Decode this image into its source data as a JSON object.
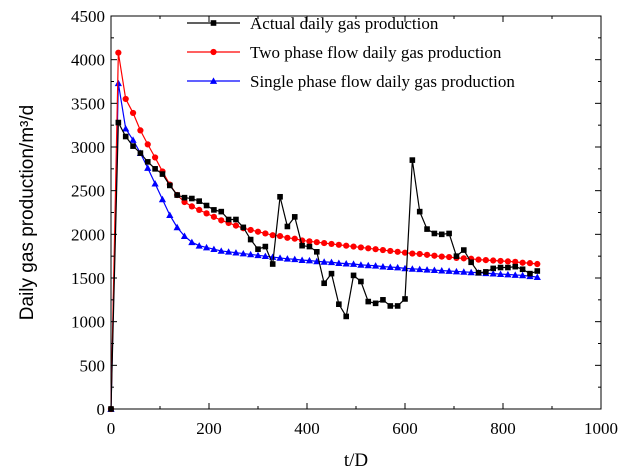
{
  "chart_data": {
    "type": "line",
    "xlabel": "t/D",
    "ylabel": "Daily gas production/m³/d",
    "xlim": [
      0,
      1000
    ],
    "ylim": [
      0,
      4500
    ],
    "xticks": [
      0,
      200,
      400,
      600,
      800,
      1000
    ],
    "yticks": [
      0,
      500,
      1000,
      1500,
      2000,
      2500,
      3000,
      3500,
      4000,
      4500
    ],
    "grid": false,
    "legend_position": "top-right",
    "series": [
      {
        "name": "Actual daily gas production",
        "color": "#000000",
        "marker": "square",
        "x": [
          0,
          15,
          30,
          45,
          60,
          75,
          90,
          105,
          120,
          135,
          150,
          165,
          180,
          195,
          210,
          225,
          240,
          255,
          270,
          285,
          300,
          315,
          330,
          345,
          360,
          375,
          390,
          405,
          420,
          435,
          450,
          465,
          480,
          495,
          510,
          525,
          540,
          555,
          570,
          585,
          600,
          615,
          630,
          645,
          660,
          675,
          690,
          705,
          720,
          735,
          750,
          765,
          780,
          795,
          810,
          825,
          840,
          855,
          870
        ],
        "y": [
          0,
          3280,
          3120,
          3010,
          2930,
          2830,
          2750,
          2690,
          2560,
          2450,
          2420,
          2410,
          2380,
          2330,
          2280,
          2260,
          2170,
          2170,
          2080,
          1940,
          1830,
          1860,
          1660,
          2430,
          2090,
          2200,
          1870,
          1860,
          1800,
          1440,
          1550,
          1200,
          1060,
          1530,
          1460,
          1230,
          1210,
          1250,
          1180,
          1180,
          1260,
          2850,
          2260,
          2060,
          2010,
          2000,
          2010,
          1750,
          1820,
          1680,
          1560,
          1570,
          1610,
          1620,
          1620,
          1630,
          1600,
          1550,
          1580
        ]
      },
      {
        "name": "Two phase flow daily gas production",
        "color": "#ff0000",
        "marker": "circle",
        "x": [
          0,
          15,
          30,
          45,
          60,
          75,
          90,
          105,
          120,
          135,
          150,
          165,
          180,
          195,
          210,
          225,
          240,
          255,
          270,
          285,
          300,
          315,
          330,
          345,
          360,
          375,
          390,
          405,
          420,
          435,
          450,
          465,
          480,
          495,
          510,
          525,
          540,
          555,
          570,
          585,
          600,
          615,
          630,
          645,
          660,
          675,
          690,
          705,
          720,
          735,
          750,
          765,
          780,
          795,
          810,
          825,
          840,
          855,
          870
        ],
        "y": [
          0,
          4080,
          3550,
          3390,
          3190,
          3030,
          2880,
          2720,
          2570,
          2450,
          2370,
          2320,
          2280,
          2240,
          2200,
          2160,
          2130,
          2100,
          2070,
          2050,
          2030,
          2010,
          1990,
          1980,
          1960,
          1950,
          1930,
          1920,
          1910,
          1900,
          1890,
          1880,
          1870,
          1860,
          1850,
          1840,
          1830,
          1820,
          1810,
          1800,
          1790,
          1780,
          1775,
          1765,
          1755,
          1745,
          1740,
          1730,
          1725,
          1720,
          1710,
          1705,
          1700,
          1695,
          1690,
          1685,
          1675,
          1670,
          1660
        ]
      },
      {
        "name": "Single phase flow daily gas production",
        "color": "#0000ff",
        "marker": "triangle",
        "x": [
          0,
          15,
          30,
          45,
          60,
          75,
          90,
          105,
          120,
          135,
          150,
          165,
          180,
          195,
          210,
          225,
          240,
          255,
          270,
          285,
          300,
          315,
          330,
          345,
          360,
          375,
          390,
          405,
          420,
          435,
          450,
          465,
          480,
          495,
          510,
          525,
          540,
          555,
          570,
          585,
          600,
          615,
          630,
          645,
          660,
          675,
          690,
          705,
          720,
          735,
          750,
          765,
          780,
          795,
          810,
          825,
          840,
          855,
          870
        ],
        "y": [
          0,
          3730,
          3210,
          3080,
          2930,
          2760,
          2580,
          2400,
          2220,
          2080,
          1980,
          1910,
          1870,
          1850,
          1830,
          1810,
          1800,
          1790,
          1780,
          1770,
          1760,
          1750,
          1740,
          1730,
          1720,
          1715,
          1705,
          1700,
          1690,
          1685,
          1680,
          1670,
          1665,
          1660,
          1650,
          1645,
          1640,
          1630,
          1625,
          1620,
          1610,
          1605,
          1600,
          1595,
          1590,
          1585,
          1580,
          1575,
          1570,
          1565,
          1560,
          1555,
          1550,
          1545,
          1540,
          1535,
          1530,
          1520,
          1510
        ]
      }
    ]
  }
}
